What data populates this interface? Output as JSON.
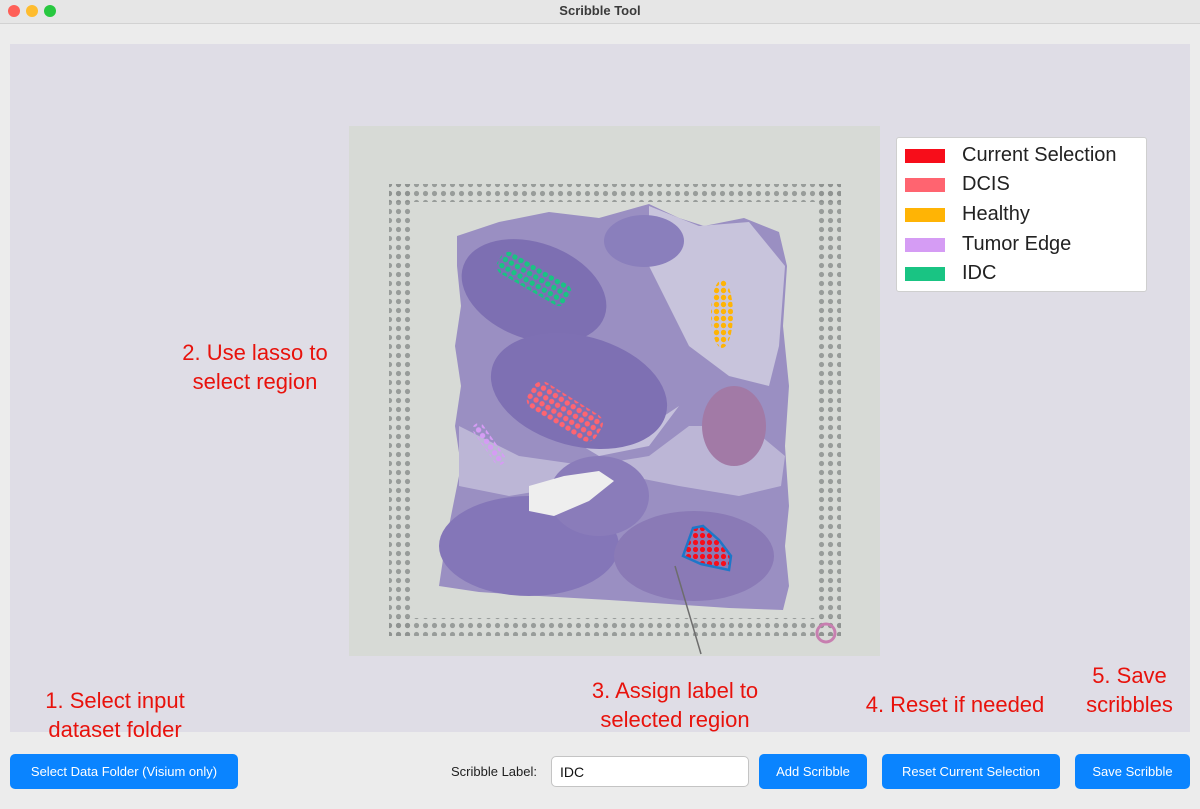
{
  "window": {
    "title": "Scribble Tool"
  },
  "legend": {
    "items": [
      {
        "label": "Current Selection",
        "color": "#f70d1a"
      },
      {
        "label": "DCIS",
        "color": "#ff6470"
      },
      {
        "label": "Healthy",
        "color": "#ffb405"
      },
      {
        "label": "Tumor Edge",
        "color": "#d59cf4"
      },
      {
        "label": "IDC",
        "color": "#19c483"
      }
    ]
  },
  "annotations": {
    "step1": [
      "1. Select input",
      "dataset folder"
    ],
    "step2": [
      "2. Use lasso to",
      "select region"
    ],
    "step3": [
      "3. Assign label to",
      "selected region"
    ],
    "step4": [
      "4. Reset if needed"
    ],
    "step5": [
      "5. Save",
      "scribbles"
    ]
  },
  "toolbar": {
    "select_folder_label": "Select Data Folder (Visium only)",
    "scribble_label_text": "Scribble Label:",
    "scribble_label_value": "IDC",
    "add_label": "Add Scribble",
    "reset_label": "Reset Current Selection",
    "save_label": "Save Scribble"
  },
  "colors": {
    "accent": "#0a84ff",
    "annotation": "#e8120c"
  }
}
